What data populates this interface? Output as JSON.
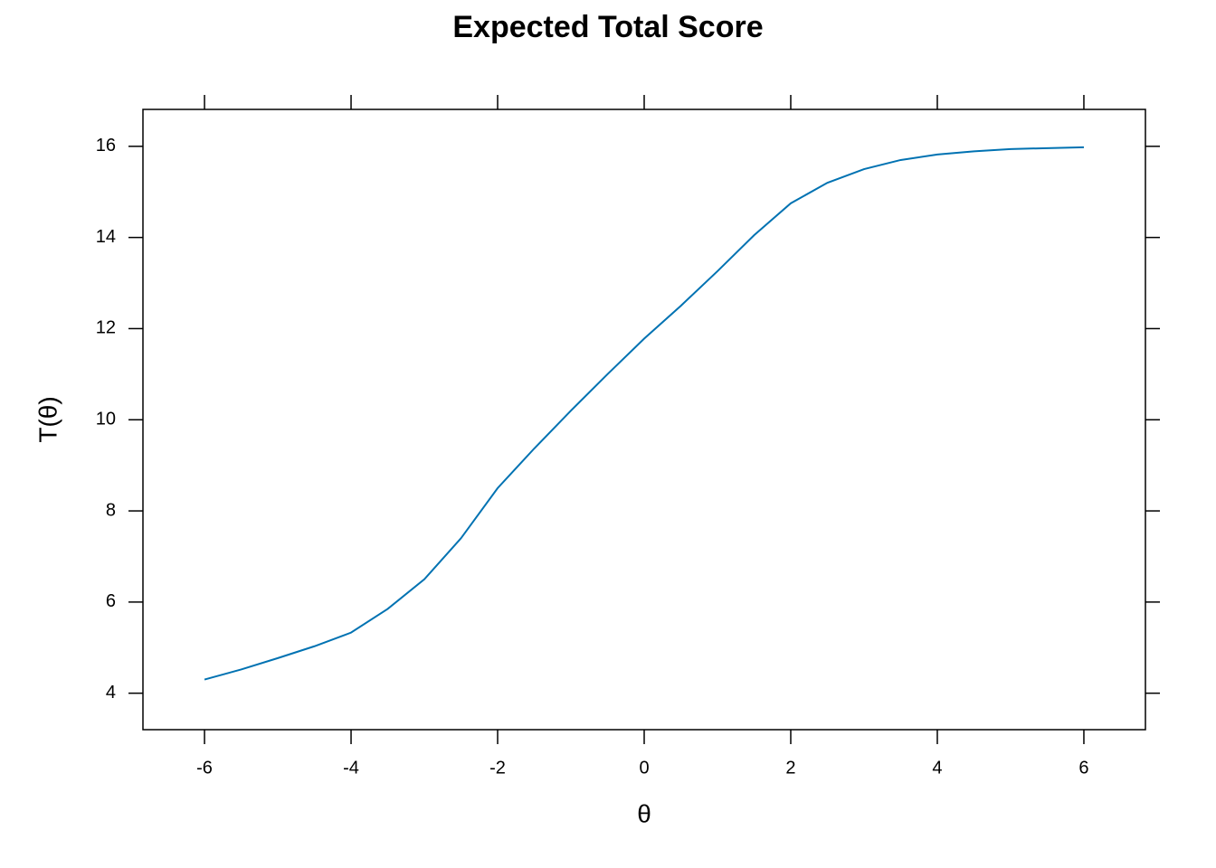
{
  "chart_data": {
    "type": "line",
    "title": "Expected Total Score",
    "x_label": "θ",
    "y_label": "T(θ)",
    "x": [
      -6,
      -5.5,
      -5,
      -4.5,
      -4,
      -3.5,
      -3,
      -2.5,
      -2,
      -1.5,
      -1,
      -0.5,
      0,
      0.5,
      1,
      1.5,
      2,
      2.5,
      3,
      3.5,
      4,
      4.5,
      5,
      5.5,
      6
    ],
    "series": [
      {
        "color": "#0072b2",
        "values": [
          4.3,
          4.52,
          4.77,
          5.03,
          5.33,
          5.85,
          6.5,
          7.4,
          8.5,
          9.37,
          10.2,
          11.0,
          11.78,
          12.5,
          13.26,
          14.05,
          14.75,
          15.2,
          15.5,
          15.7,
          15.82,
          15.89,
          15.94,
          15.96,
          15.98
        ]
      }
    ],
    "xlim": [
      -6.84,
      6.84
    ],
    "ylim": [
      3.2,
      16.81
    ],
    "xticks": [
      -6,
      -4,
      -2,
      0,
      2,
      4,
      6
    ],
    "yticks": [
      4,
      6,
      8,
      10,
      12,
      14,
      16
    ]
  }
}
